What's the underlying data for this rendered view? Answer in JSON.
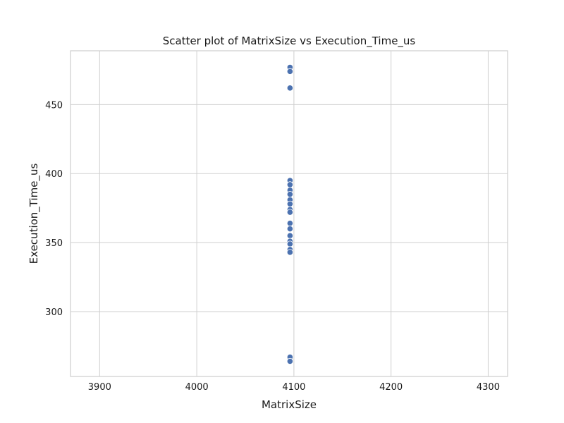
{
  "chart_data": {
    "type": "scatter",
    "title": "Scatter plot of MatrixSize vs Execution_Time_us",
    "xlabel": "MatrixSize",
    "ylabel": "Execution_Time_us",
    "xlim": [
      3870,
      4320
    ],
    "ylim": [
      253,
      489
    ],
    "xticks": [
      3900,
      4000,
      4100,
      4200,
      4300
    ],
    "yticks": [
      300,
      350,
      400,
      450
    ],
    "grid": true,
    "legend": "none",
    "marker_color": "#4c72b0",
    "points": [
      {
        "x": 4096,
        "y": 477
      },
      {
        "x": 4096,
        "y": 474
      },
      {
        "x": 4096,
        "y": 462
      },
      {
        "x": 4096,
        "y": 395
      },
      {
        "x": 4096,
        "y": 392
      },
      {
        "x": 4096,
        "y": 388
      },
      {
        "x": 4096,
        "y": 385
      },
      {
        "x": 4096,
        "y": 381
      },
      {
        "x": 4096,
        "y": 378
      },
      {
        "x": 4096,
        "y": 374
      },
      {
        "x": 4096,
        "y": 372
      },
      {
        "x": 4096,
        "y": 364
      },
      {
        "x": 4096,
        "y": 360
      },
      {
        "x": 4096,
        "y": 355
      },
      {
        "x": 4096,
        "y": 351
      },
      {
        "x": 4096,
        "y": 349
      },
      {
        "x": 4096,
        "y": 345
      },
      {
        "x": 4096,
        "y": 343
      },
      {
        "x": 4096,
        "y": 267
      },
      {
        "x": 4096,
        "y": 264
      }
    ]
  }
}
